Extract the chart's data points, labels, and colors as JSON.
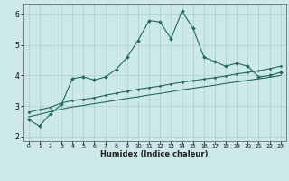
{
  "x": [
    0,
    1,
    2,
    3,
    4,
    5,
    6,
    7,
    8,
    9,
    10,
    11,
    12,
    13,
    14,
    15,
    16,
    17,
    18,
    19,
    20,
    21,
    22,
    23
  ],
  "line1": [
    2.55,
    2.35,
    2.75,
    3.05,
    3.9,
    3.95,
    3.85,
    3.95,
    4.2,
    4.6,
    5.15,
    5.8,
    5.75,
    5.2,
    6.1,
    5.55,
    4.6,
    4.45,
    4.3,
    4.4,
    4.3,
    3.95,
    4.0,
    4.1
  ],
  "line2_slope": [
    2.8,
    2.88,
    2.96,
    3.1,
    3.18,
    3.22,
    3.27,
    3.35,
    3.42,
    3.48,
    3.55,
    3.6,
    3.65,
    3.72,
    3.78,
    3.83,
    3.88,
    3.93,
    3.98,
    4.05,
    4.1,
    4.15,
    4.22,
    4.3
  ],
  "line3_slope": [
    2.65,
    2.73,
    2.82,
    2.9,
    2.97,
    3.02,
    3.08,
    3.13,
    3.19,
    3.25,
    3.3,
    3.36,
    3.41,
    3.47,
    3.53,
    3.58,
    3.63,
    3.68,
    3.74,
    3.79,
    3.84,
    3.89,
    3.94,
    4.0
  ],
  "bg_color": "#cce8e8",
  "line_color": "#1e6b5e",
  "grid_color": "#b0cccc",
  "xlabel": "Humidex (Indice chaleur)",
  "xlim": [
    -0.5,
    23.5
  ],
  "ylim": [
    1.85,
    6.35
  ],
  "yticks": [
    2,
    3,
    4,
    5,
    6
  ],
  "xticks": [
    0,
    1,
    2,
    3,
    4,
    5,
    6,
    7,
    8,
    9,
    10,
    11,
    12,
    13,
    14,
    15,
    16,
    17,
    18,
    19,
    20,
    21,
    22,
    23
  ]
}
